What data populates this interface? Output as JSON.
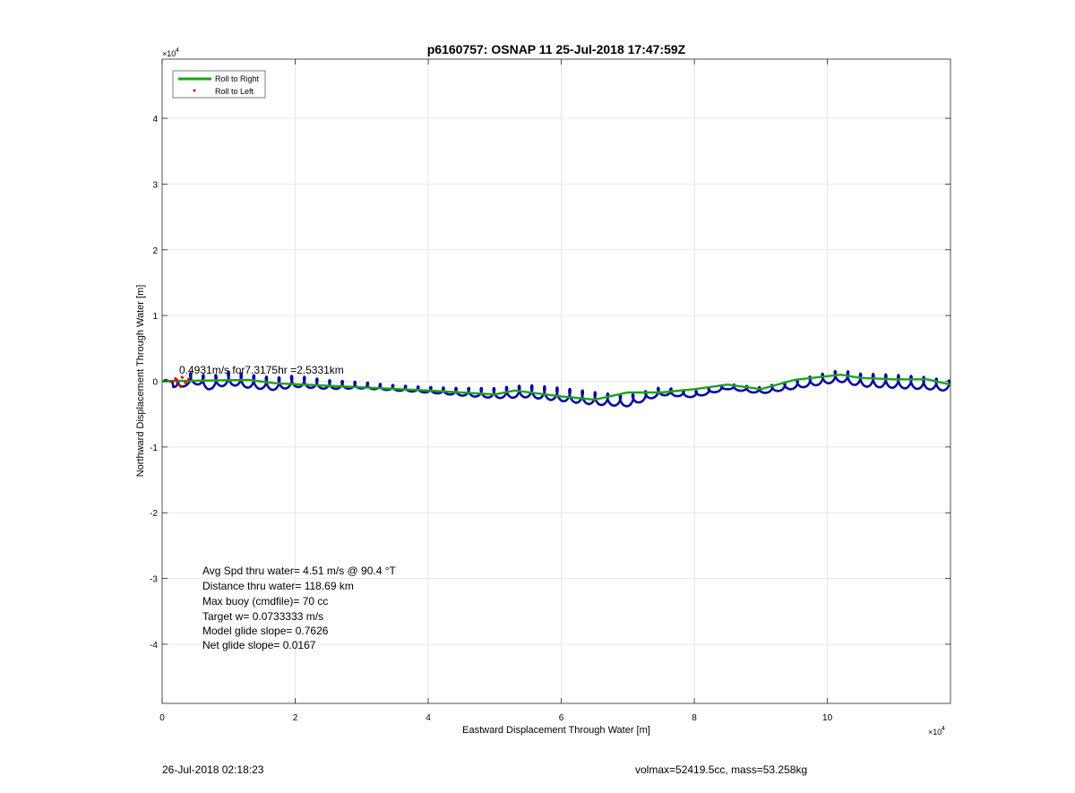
{
  "chart_data": {
    "type": "line",
    "title": "p6160757: OSNAP 11 25-Jul-2018 17:47:59Z",
    "xlabel": "Eastward Displacement Through Water [m]",
    "ylabel": "Northward Displacement Through Water [m]",
    "x_exponent_label": "×10",
    "x_exponent_power": "4",
    "y_exponent_label": "×10",
    "y_exponent_power": "4",
    "xlim": [
      0,
      11.85
    ],
    "ylim": [
      -4.9,
      4.9
    ],
    "x_ticks": [
      0,
      2,
      4,
      6,
      8,
      10
    ],
    "x_tick_labels": [
      "0",
      "2",
      "4",
      "6",
      "8",
      "10"
    ],
    "y_ticks": [
      -4,
      -3,
      -2,
      -1,
      0,
      1,
      2,
      3,
      4
    ],
    "y_tick_labels": [
      "-4",
      "-3",
      "-2",
      "-1",
      "0",
      "1",
      "2",
      "3",
      "4"
    ],
    "grid": true,
    "legend_position": "top-left",
    "series": [
      {
        "name": "Roll to Right",
        "color": "#1aa31a",
        "style": "line",
        "x": [
          0,
          1.3,
          1.7,
          4.0,
          5.0,
          5.3,
          6.0,
          6.5,
          7.0,
          7.5,
          8.0,
          8.5,
          9.0,
          9.5,
          10.2,
          10.5,
          11.0,
          11.5,
          11.85
        ],
        "y": [
          0,
          0.02,
          -0.03,
          -0.14,
          -0.2,
          -0.14,
          -0.23,
          -0.28,
          -0.17,
          -0.17,
          -0.12,
          -0.05,
          -0.12,
          0.02,
          0.1,
          0.05,
          0.03,
          0.03,
          -0.05
        ]
      },
      {
        "name": "Roll to Left",
        "color": "#e00000",
        "style": "dots",
        "x": [
          0.15,
          0.2,
          0.25,
          0.3,
          0.35,
          0.4,
          0.28,
          0.22
        ],
        "y": [
          0.0,
          0.04,
          -0.05,
          0.06,
          -0.02,
          0.03,
          -0.08,
          0.02
        ]
      },
      {
        "name": "",
        "color": "#0a0aa0",
        "style": "line",
        "x": [
          0.0,
          0.1,
          0.2,
          0.25,
          0.3,
          0.35,
          0.5,
          0.7,
          1.0,
          1.3,
          1.7,
          2.0,
          2.5,
          3.0,
          3.5,
          4.0,
          4.5,
          5.0,
          5.5,
          6.0,
          6.5,
          7.0,
          7.5,
          8.0,
          8.5,
          9.0,
          9.5,
          10.0,
          10.2,
          10.5,
          11.0,
          11.5,
          11.85
        ],
        "y": [
          0.0,
          0.02,
          -0.05,
          -0.1,
          -0.02,
          0.02,
          0.05,
          -0.03,
          0.05,
          0.0,
          -0.04,
          0.0,
          -0.05,
          -0.06,
          -0.1,
          -0.13,
          -0.16,
          -0.18,
          -0.15,
          -0.2,
          -0.26,
          -0.3,
          -0.15,
          -0.2,
          -0.08,
          -0.14,
          -0.05,
          0.05,
          0.08,
          0.02,
          0.0,
          -0.03,
          -0.07
        ],
        "oscillation_amplitude": 0.1,
        "oscillation_period": 0.19
      }
    ],
    "annotations": [
      {
        "text": "Avg Spd thru water=  4.51 m/s @  90.4 °T"
      },
      {
        "text": "Distance thru water= 118.69 km"
      },
      {
        "text": "Max buoy (cmdfile)= 70 cc"
      },
      {
        "text": "Target w= 0.0733333 m/s"
      },
      {
        "text": "Model glide slope= 0.7626"
      },
      {
        "text": "Net glide slope= 0.0167"
      }
    ],
    "overlay_label": "0.4931m/s for7.3175hr =2.5331km"
  },
  "footer": {
    "left": "26-Jul-2018 02:18:23",
    "right": "volmax=52419.5cc, mass=53.258kg"
  }
}
